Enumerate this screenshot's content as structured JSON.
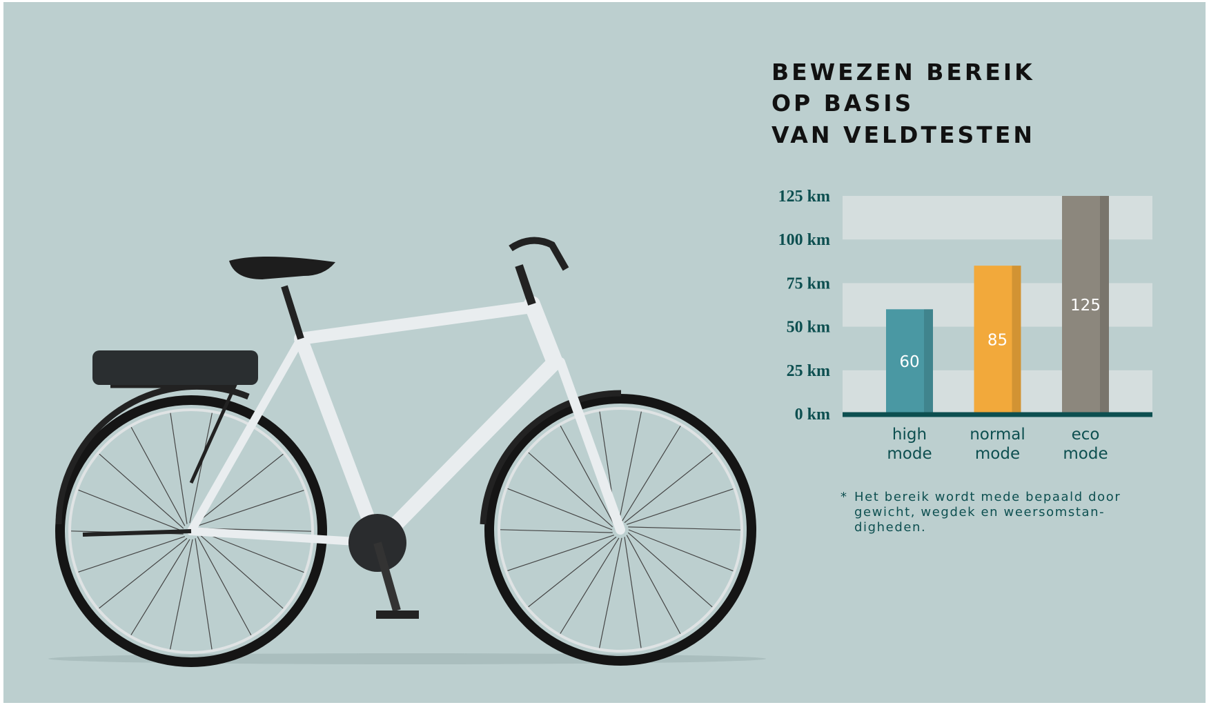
{
  "chart_data": {
    "type": "bar",
    "title": [
      "BEWEZEN BEREIK",
      "OP BASIS",
      "VAN VELDTESTEN"
    ],
    "categories": [
      [
        "high",
        "mode"
      ],
      [
        "normal",
        "mode"
      ],
      [
        "eco",
        "mode"
      ]
    ],
    "values": [
      60,
      85,
      125
    ],
    "colors": [
      "#4a98a3",
      "#f2a93b",
      "#8c877d"
    ],
    "ylim": [
      0,
      125
    ],
    "yticks": [
      {
        "value": 0,
        "label": "0 km"
      },
      {
        "value": 25,
        "label": "25 km"
      },
      {
        "value": 50,
        "label": "50 km"
      },
      {
        "value": 75,
        "label": "75 km"
      },
      {
        "value": 100,
        "label": "100 km"
      },
      {
        "value": 125,
        "label": "125 km"
      }
    ],
    "grid": true,
    "footnote_marker": "*",
    "footnote": [
      "Het bereik wordt mede bepaald door",
      "gewicht, wegdek en weersomstan-",
      "digheden."
    ]
  }
}
